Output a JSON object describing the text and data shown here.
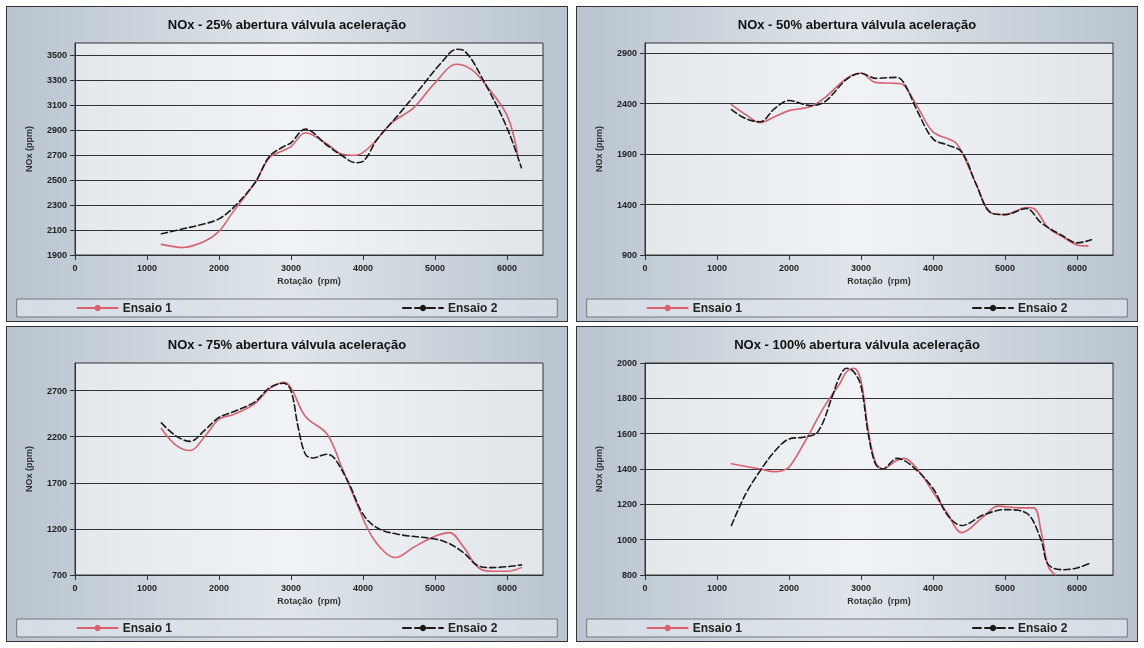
{
  "chart_data": [
    {
      "type": "line",
      "title": "NOx - 25% abertura válvula aceleração",
      "xlabel": "Rotação  (rpm)",
      "ylabel": "NOx (ppm)",
      "xlim": [
        0,
        6500
      ],
      "xticks": [
        0,
        1000,
        2000,
        3000,
        4000,
        5000,
        6000
      ],
      "ylim": [
        1900,
        3600
      ],
      "yticks": [
        1900,
        2100,
        2300,
        2500,
        2700,
        2900,
        3100,
        3300,
        3500
      ],
      "grid": "y",
      "legend": "bottom",
      "marker": "none",
      "series": [
        {
          "name": "Ensaio 1",
          "color": "#d9606e",
          "line_style": "solid",
          "x": [
            1200,
            1500,
            1800,
            2000,
            2200,
            2500,
            2700,
            2900,
            3000,
            3200,
            3500,
            3700,
            3900,
            4100,
            4400,
            4700,
            5000,
            5300,
            5500,
            5700,
            6000,
            6150
          ],
          "values": [
            1985,
            1960,
            2010,
            2090,
            2250,
            2480,
            2680,
            2740,
            2770,
            2880,
            2790,
            2710,
            2700,
            2770,
            2960,
            3080,
            3280,
            3430,
            3390,
            3270,
            3020,
            2700
          ]
        },
        {
          "name": "Ensaio 2",
          "color": "#1a1a1a",
          "line_style": "dashed",
          "x": [
            1200,
            1500,
            1800,
            2000,
            2200,
            2500,
            2700,
            2900,
            3000,
            3200,
            3500,
            3700,
            3900,
            4000,
            4200,
            4500,
            4800,
            5100,
            5300,
            5400,
            5700,
            6000,
            6200
          ],
          "values": [
            2070,
            2110,
            2150,
            2190,
            2280,
            2480,
            2690,
            2770,
            2800,
            2910,
            2780,
            2700,
            2640,
            2650,
            2830,
            3030,
            3240,
            3450,
            3550,
            3540,
            3270,
            2920,
            2600
          ]
        }
      ]
    },
    {
      "type": "line",
      "title": "NOx - 50% abertura válvula aceleração",
      "xlabel": "Rotação  (rpm)",
      "ylabel": "NOx (ppm)",
      "xlim": [
        0,
        6500
      ],
      "xticks": [
        0,
        1000,
        2000,
        3000,
        4000,
        5000,
        6000
      ],
      "ylim": [
        900,
        3000
      ],
      "yticks": [
        900,
        1400,
        1900,
        2400,
        2900
      ],
      "grid": "y",
      "legend": "bottom",
      "marker": "none",
      "series": [
        {
          "name": "Ensaio 1",
          "color": "#d9606e",
          "line_style": "solid",
          "x": [
            1200,
            1400,
            1600,
            1800,
            2000,
            2300,
            2500,
            2800,
            3000,
            3200,
            3500,
            3600,
            3800,
            4000,
            4300,
            4400,
            4600,
            4800,
            5000,
            5300,
            5400,
            5600,
            5800,
            6000,
            6150
          ],
          "values": [
            2390,
            2290,
            2210,
            2270,
            2330,
            2370,
            2460,
            2650,
            2700,
            2610,
            2600,
            2580,
            2350,
            2120,
            2020,
            1920,
            1600,
            1320,
            1300,
            1370,
            1360,
            1170,
            1080,
            1000,
            990
          ]
        },
        {
          "name": "Ensaio 2",
          "color": "#1a1a1a",
          "line_style": "dashed",
          "x": [
            1200,
            1400,
            1600,
            1800,
            2000,
            2300,
            2500,
            2800,
            3000,
            3200,
            3500,
            3600,
            3800,
            4000,
            4200,
            4400,
            4600,
            4800,
            5000,
            5300,
            5500,
            5800,
            6000,
            6200
          ],
          "values": [
            2340,
            2250,
            2220,
            2350,
            2430,
            2380,
            2420,
            2640,
            2700,
            2650,
            2660,
            2600,
            2300,
            2050,
            1990,
            1920,
            1600,
            1320,
            1300,
            1360,
            1220,
            1090,
            1020,
            1050
          ]
        }
      ]
    },
    {
      "type": "line",
      "title": "NOx - 75% abertura válvula aceleração",
      "xlabel": "Rotação  (rpm)",
      "ylabel": "NOx (ppm)",
      "xlim": [
        0,
        6500
      ],
      "xticks": [
        0,
        1000,
        2000,
        3000,
        4000,
        5000,
        6000
      ],
      "ylim": [
        700,
        3000
      ],
      "yticks": [
        700,
        1200,
        1700,
        2200,
        2700
      ],
      "grid": "y",
      "legend": "bottom",
      "marker": "none",
      "series": [
        {
          "name": "Ensaio 1",
          "color": "#d9606e",
          "line_style": "solid",
          "x": [
            1200,
            1400,
            1600,
            1800,
            2000,
            2200,
            2500,
            2700,
            2900,
            3000,
            3200,
            3500,
            3700,
            3900,
            4100,
            4300,
            4450,
            4700,
            5000,
            5200,
            5400,
            5600,
            5800,
            6000,
            6200
          ],
          "values": [
            2290,
            2110,
            2050,
            2200,
            2390,
            2440,
            2560,
            2720,
            2790,
            2730,
            2420,
            2230,
            1880,
            1500,
            1150,
            950,
            890,
            1000,
            1120,
            1160,
            1000,
            780,
            740,
            740,
            780
          ]
        },
        {
          "name": "Ensaio 2",
          "color": "#1a1a1a",
          "line_style": "dashed",
          "x": [
            1200,
            1400,
            1600,
            1800,
            2000,
            2200,
            2500,
            2700,
            2900,
            3000,
            3100,
            3200,
            3300,
            3500,
            3600,
            3800,
            4000,
            4200,
            4500,
            5000,
            5200,
            5400,
            5600,
            5800,
            6200
          ],
          "values": [
            2350,
            2210,
            2150,
            2270,
            2410,
            2470,
            2580,
            2730,
            2780,
            2700,
            2300,
            2010,
            1970,
            2010,
            1970,
            1700,
            1360,
            1210,
            1140,
            1090,
            1040,
            940,
            800,
            780,
            810
          ]
        }
      ]
    },
    {
      "type": "line",
      "title": "NOx - 100% abertura válvula aceleração",
      "xlabel": "Rotação  (rpm)",
      "ylabel": "NOx (ppm)",
      "xlim": [
        0,
        6500
      ],
      "xticks": [
        0,
        1000,
        2000,
        3000,
        4000,
        5000,
        6000
      ],
      "ylim": [
        800,
        2000
      ],
      "yticks": [
        800,
        1000,
        1200,
        1400,
        1600,
        1800,
        2000
      ],
      "grid": "y",
      "legend": "bottom",
      "marker": "none",
      "series": [
        {
          "name": "Ensaio 1",
          "color": "#d9606e",
          "line_style": "solid",
          "x": [
            1200,
            1600,
            1800,
            1900,
            2000,
            2200,
            2500,
            2700,
            2800,
            2900,
            3000,
            3100,
            3200,
            3300,
            3500,
            3600,
            3800,
            4000,
            4200,
            4400,
            4700,
            4900,
            5200,
            5400,
            5500,
            5600,
            5700
          ],
          "values": [
            1430,
            1400,
            1385,
            1390,
            1410,
            1540,
            1760,
            1880,
            1950,
            1970,
            1900,
            1620,
            1440,
            1400,
            1450,
            1460,
            1390,
            1270,
            1150,
            1040,
            1130,
            1190,
            1180,
            1180,
            1050,
            850,
            800
          ]
        },
        {
          "name": "Ensaio 2",
          "color": "#1a1a1a",
          "line_style": "dashed",
          "x": [
            1200,
            1400,
            1600,
            1800,
            2000,
            2200,
            2400,
            2600,
            2700,
            2800,
            2900,
            3000,
            3100,
            3200,
            3300,
            3500,
            3700,
            4000,
            4200,
            4400,
            4700,
            5000,
            5300,
            5500,
            5600,
            5800,
            6000,
            6200
          ],
          "values": [
            1080,
            1260,
            1390,
            1500,
            1570,
            1580,
            1610,
            1810,
            1920,
            1970,
            1950,
            1870,
            1600,
            1430,
            1400,
            1460,
            1420,
            1290,
            1140,
            1080,
            1140,
            1170,
            1150,
            1000,
            860,
            830,
            840,
            870
          ]
        }
      ]
    }
  ]
}
